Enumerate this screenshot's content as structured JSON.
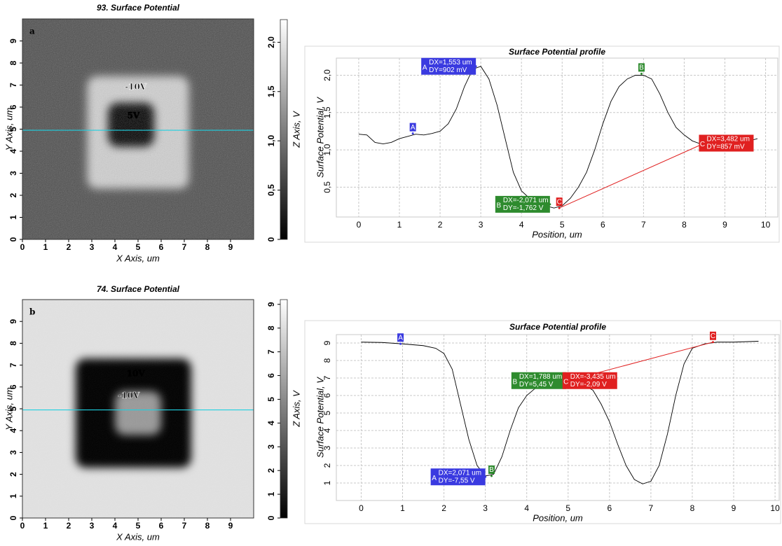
{
  "chart_data": [
    {
      "type": "heatmap",
      "panel": "a",
      "title": "93. Surface Potential",
      "x_label": "X Axis, um",
      "y_label": "Y Axis, um",
      "xlim": [
        0,
        10
      ],
      "ylim": [
        0,
        10
      ],
      "xticks": [
        0,
        1,
        2,
        3,
        4,
        5,
        6,
        7,
        8,
        9
      ],
      "yticks": [
        0,
        1,
        2,
        3,
        4,
        5,
        6,
        7,
        8,
        9
      ],
      "annotations": [
        "-10V",
        "5V"
      ],
      "profile_y": 4.95,
      "colorbar": {
        "label": "Z Axis, V",
        "lim": [
          0,
          2.23
        ],
        "ticks": [
          0,
          {
            "value": 0.5,
            "label": "0,5"
          },
          {
            "value": 1,
            "label": "1,0"
          },
          {
            "value": 1.5,
            "label": "1,5"
          },
          {
            "value": 2,
            "label": "2,0"
          }
        ]
      }
    },
    {
      "type": "line",
      "title": "Surface Potential profile",
      "x_label": "Position, um",
      "y_label": "Surface Potential, V",
      "xlim": [
        -0.55,
        10.3
      ],
      "ylim": [
        0.1,
        2.23
      ],
      "xticks": [
        0,
        1,
        2,
        3,
        4,
        5,
        6,
        7,
        8,
        9,
        10
      ],
      "yticks": [
        {
          "value": 0.5,
          "label": "0,5"
        },
        {
          "value": 1,
          "label": "1,0"
        },
        {
          "value": 1.5,
          "label": "1,5"
        },
        {
          "value": 2,
          "label": "2,0"
        }
      ],
      "grid": true,
      "color": "#000000",
      "x": [
        0,
        0.2,
        0.4,
        0.6,
        0.8,
        1.0,
        1.2,
        1.4,
        1.6,
        1.8,
        2.0,
        2.2,
        2.4,
        2.6,
        2.8,
        3.0,
        3.2,
        3.4,
        3.6,
        3.8,
        4.0,
        4.2,
        4.4,
        4.6,
        4.8,
        5.0,
        5.2,
        5.4,
        5.6,
        5.8,
        6.0,
        6.2,
        6.4,
        6.6,
        6.8,
        7.0,
        7.2,
        7.4,
        7.6,
        7.8,
        8.0,
        8.2,
        8.4,
        8.6,
        8.8,
        9.0,
        9.2,
        9.4,
        9.6,
        9.8
      ],
      "values": [
        1.21,
        1.2,
        1.1,
        1.08,
        1.1,
        1.15,
        1.18,
        1.21,
        1.2,
        1.22,
        1.25,
        1.35,
        1.55,
        1.85,
        2.08,
        2.12,
        1.95,
        1.6,
        1.15,
        0.7,
        0.45,
        0.35,
        0.3,
        0.25,
        0.22,
        0.25,
        0.35,
        0.5,
        0.7,
        1.0,
        1.35,
        1.65,
        1.85,
        1.95,
        2.0,
        2.0,
        1.95,
        1.75,
        1.5,
        1.3,
        1.2,
        1.12,
        1.08,
        1.07,
        1.12,
        1.14,
        1.13,
        1.15,
        1.12,
        1.15
      ],
      "markers": [
        {
          "label": "A",
          "x": 1.33,
          "y": 1.22,
          "color": "#3a3ae0"
        },
        {
          "label": "A",
          "x": 2.88,
          "y": 2.12,
          "color": "#3a3ae0",
          "note": [
            "DX=1,553 um",
            "DY=902 mV"
          ]
        },
        {
          "label": "B",
          "x": 6.95,
          "y": 2.02,
          "color": "#2e8b2e"
        },
        {
          "label": "B",
          "x": 4.7,
          "y": 0.27,
          "color": "#2e8b2e",
          "note": [
            "DX=-2,071 um",
            "DY=-1,762 V"
          ]
        },
        {
          "label": "C",
          "x": 4.93,
          "y": 0.22,
          "color": "#e02020"
        },
        {
          "label": "C",
          "x": 8.5,
          "y": 1.09,
          "color": "#e02020",
          "note": [
            "DX=3,482 um",
            "DY=857 mV"
          ]
        }
      ]
    },
    {
      "type": "heatmap",
      "panel": "b",
      "title": "74. Surface Potential",
      "x_label": "X Axis, um",
      "y_label": "Y Axis, um",
      "xlim": [
        0,
        10
      ],
      "ylim": [
        0,
        10
      ],
      "xticks": [
        0,
        1,
        2,
        3,
        4,
        5,
        6,
        7,
        8,
        9
      ],
      "yticks": [
        0,
        1,
        2,
        3,
        4,
        5,
        6,
        7,
        8,
        9
      ],
      "annotations": [
        "10V",
        "-10V"
      ],
      "profile_y": 4.95,
      "colorbar": {
        "label": "Z Axis, V",
        "lim": [
          0,
          9.2
        ],
        "ticks": [
          0,
          1,
          2,
          3,
          4,
          5,
          6,
          7,
          8,
          9
        ]
      }
    },
    {
      "type": "line",
      "title": "Surface Potential profile",
      "x_label": "Position, um",
      "y_label": "Surface Potential, V",
      "xlim": [
        -0.6,
        10.1
      ],
      "ylim": [
        0,
        9.48
      ],
      "xticks": [
        0,
        1,
        2,
        3,
        4,
        5,
        6,
        7,
        8,
        9,
        10
      ],
      "yticks": [
        1,
        2,
        3,
        4,
        5,
        6,
        7,
        8,
        9
      ],
      "grid": true,
      "color": "#000000",
      "x": [
        0,
        0.5,
        1.0,
        1.5,
        1.8,
        2.0,
        2.2,
        2.4,
        2.6,
        2.8,
        3.0,
        3.2,
        3.4,
        3.6,
        3.8,
        4.0,
        4.2,
        4.5,
        4.8,
        5.0,
        5.3,
        5.6,
        5.8,
        6.0,
        6.2,
        6.4,
        6.6,
        6.8,
        7.0,
        7.2,
        7.4,
        7.6,
        7.8,
        8.0,
        8.3,
        8.6,
        9.0,
        9.6
      ],
      "values": [
        9.05,
        9.03,
        8.95,
        8.85,
        8.7,
        8.4,
        7.5,
        5.5,
        3.5,
        2.0,
        1.4,
        1.5,
        2.5,
        4.0,
        5.3,
        6.0,
        6.4,
        6.7,
        6.85,
        6.85,
        6.7,
        6.3,
        5.5,
        4.5,
        3.2,
        2.0,
        1.2,
        0.95,
        1.1,
        2.0,
        3.8,
        6.0,
        7.8,
        8.7,
        8.95,
        9.05,
        9.05,
        9.1
      ],
      "markers": [
        {
          "label": "A",
          "x": 0.95,
          "y": 8.95,
          "color": "#3a3ae0"
        },
        {
          "label": "A",
          "x": 3.0,
          "y": 1.35,
          "color": "#3a3ae0",
          "note": [
            "DX=2,071 um",
            "DY=-7,55 V"
          ]
        },
        {
          "label": "B",
          "x": 3.15,
          "y": 1.4,
          "color": "#2e8b2e"
        },
        {
          "label": "B",
          "x": 4.95,
          "y": 6.85,
          "color": "#2e8b2e",
          "note": [
            "DX=1,788 um",
            "DY=5,45 V"
          ]
        },
        {
          "label": "C",
          "x": 5.0,
          "y": 6.85,
          "color": "#e02020",
          "note": [
            "DX=-3,435 um",
            "DY=-2,09 V"
          ]
        },
        {
          "label": "C",
          "x": 8.5,
          "y": 9.05,
          "color": "#e02020"
        }
      ]
    }
  ]
}
